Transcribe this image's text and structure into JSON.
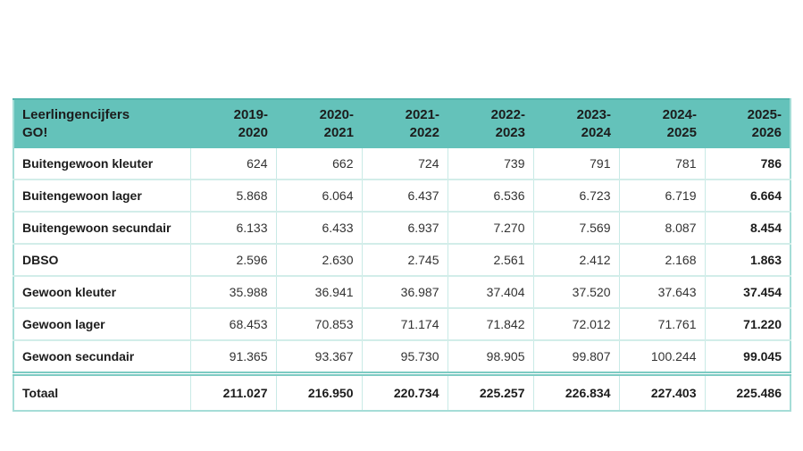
{
  "colors": {
    "header_bg": "#64C2BA",
    "border_vertical": "#C9EAE6",
    "border_horizontal": "#D2EDE9",
    "border_outer": "#A5DDD7",
    "border_double_rule": "#7DCBC3",
    "text_dark": "#1C1C1C"
  },
  "table": {
    "title_line1": "Leerlingencijfers",
    "title_line2": "GO!",
    "year_columns": [
      "2019-2020",
      "2020-2021",
      "2021-2022",
      "2022-2023",
      "2023-2024",
      "2024-2025",
      "2025-2026"
    ],
    "rows": [
      {
        "label": "Buitengewoon kleuter",
        "values": [
          "624",
          "662",
          "724",
          "739",
          "791",
          "781",
          "786"
        ]
      },
      {
        "label": "Buitengewoon lager",
        "values": [
          "5.868",
          "6.064",
          "6.437",
          "6.536",
          "6.723",
          "6.719",
          "6.664"
        ]
      },
      {
        "label": "Buitengewoon secundair",
        "values": [
          "6.133",
          "6.433",
          "6.937",
          "7.270",
          "7.569",
          "8.087",
          "8.454"
        ]
      },
      {
        "label": "DBSO",
        "values": [
          "2.596",
          "2.630",
          "2.745",
          "2.561",
          "2.412",
          "2.168",
          "1.863"
        ]
      },
      {
        "label": "Gewoon kleuter",
        "values": [
          "35.988",
          "36.941",
          "36.987",
          "37.404",
          "37.520",
          "37.643",
          "37.454"
        ]
      },
      {
        "label": "Gewoon lager",
        "values": [
          "68.453",
          "70.853",
          "71.174",
          "71.842",
          "72.012",
          "71.761",
          "71.220"
        ]
      },
      {
        "label": "Gewoon secundair",
        "values": [
          "91.365",
          "93.367",
          "95.730",
          "98.905",
          "99.807",
          "100.244",
          "99.045"
        ]
      }
    ],
    "total_row": {
      "label": "Totaal",
      "values": [
        "211.027",
        "216.950",
        "220.734",
        "225.257",
        "226.834",
        "227.403",
        "225.486"
      ]
    }
  },
  "chart_data": {
    "type": "table",
    "title": "Leerlingencijfers GO!",
    "categories": [
      "2019-2020",
      "2020-2021",
      "2021-2022",
      "2022-2023",
      "2023-2024",
      "2024-2025",
      "2025-2026"
    ],
    "series": [
      {
        "name": "Buitengewoon kleuter",
        "values": [
          624,
          662,
          724,
          739,
          791,
          781,
          786
        ]
      },
      {
        "name": "Buitengewoon lager",
        "values": [
          5868,
          6064,
          6437,
          6536,
          6723,
          6719,
          6664
        ]
      },
      {
        "name": "Buitengewoon secundair",
        "values": [
          6133,
          6433,
          6937,
          7270,
          7569,
          8087,
          8454
        ]
      },
      {
        "name": "DBSO",
        "values": [
          2596,
          2630,
          2745,
          2561,
          2412,
          2168,
          1863
        ]
      },
      {
        "name": "Gewoon kleuter",
        "values": [
          35988,
          36941,
          36987,
          37404,
          37520,
          37643,
          37454
        ]
      },
      {
        "name": "Gewoon lager",
        "values": [
          68453,
          70853,
          71174,
          71842,
          72012,
          71761,
          71220
        ]
      },
      {
        "name": "Gewoon secundair",
        "values": [
          91365,
          93367,
          95730,
          98905,
          99807,
          100244,
          99045
        ]
      },
      {
        "name": "Totaal",
        "values": [
          211027,
          216950,
          220734,
          225257,
          226834,
          227403,
          225486
        ]
      }
    ],
    "number_format": "dot-thousands-separator (nl)",
    "notes": "Last column (2025-2026) and Totaal row rendered bold; double rule above Totaal row"
  }
}
